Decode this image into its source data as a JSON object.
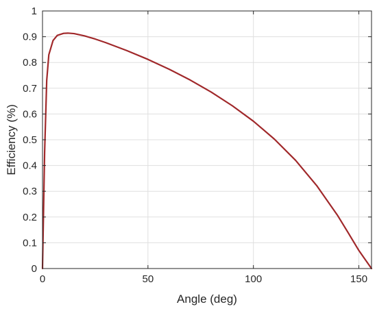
{
  "chart_data": {
    "type": "line",
    "xlabel": "Angle (deg)",
    "ylabel": "Efficiency (%)",
    "xlim": [
      0,
      156
    ],
    "ylim": [
      0,
      1
    ],
    "xticks": [
      0,
      50,
      100,
      150
    ],
    "yticks": [
      0,
      0.1,
      0.2,
      0.3,
      0.4,
      0.5,
      0.6,
      0.7,
      0.8,
      0.9,
      1
    ],
    "xtick_labels": [
      "0",
      "50",
      "100",
      "150"
    ],
    "ytick_labels": [
      "0",
      "0.1",
      "0.2",
      "0.3",
      "0.4",
      "0.5",
      "0.6",
      "0.7",
      "0.8",
      "0.9",
      "1"
    ],
    "grid": true,
    "series": [
      {
        "color": "#a0282a",
        "x": [
          0,
          1,
          2,
          3,
          5,
          7,
          10,
          12,
          15,
          20,
          25,
          30,
          40,
          50,
          60,
          70,
          80,
          90,
          100,
          110,
          120,
          130,
          140,
          145,
          150,
          153,
          156
        ],
        "y": [
          0,
          0.45,
          0.73,
          0.83,
          0.885,
          0.905,
          0.913,
          0.914,
          0.912,
          0.903,
          0.891,
          0.877,
          0.846,
          0.812,
          0.774,
          0.732,
          0.685,
          0.632,
          0.572,
          0.502,
          0.42,
          0.322,
          0.205,
          0.138,
          0.07,
          0.035,
          0
        ]
      }
    ]
  }
}
